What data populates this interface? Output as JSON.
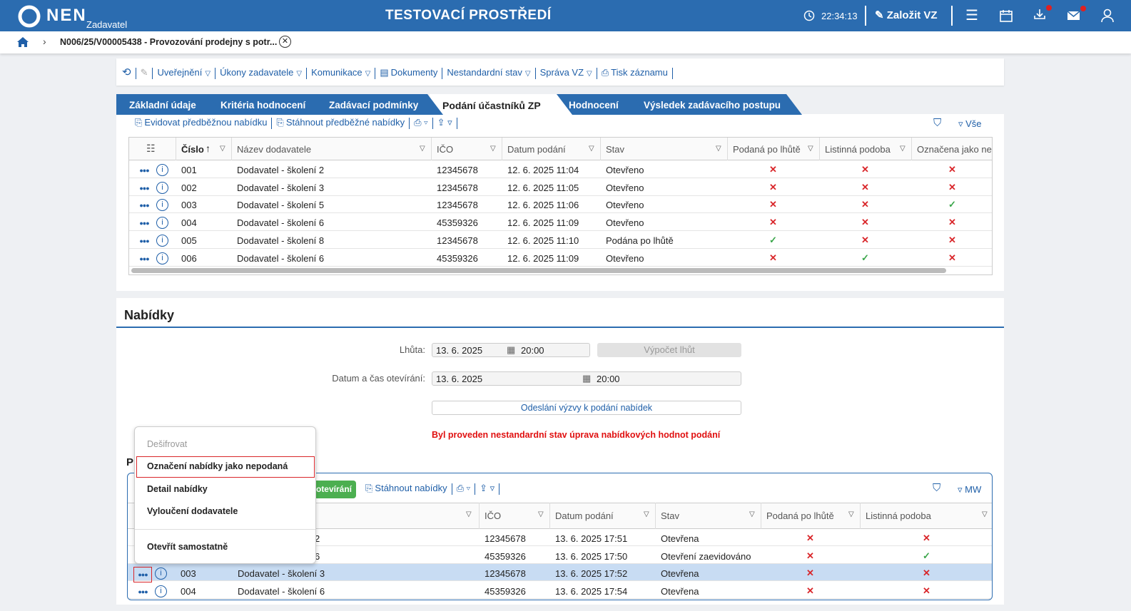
{
  "header": {
    "logo": "NEN",
    "role": "Zadavatel",
    "environment": "TESTOVACÍ PROSTŘEDÍ",
    "time": "22:34:13",
    "create": "Založit VZ"
  },
  "breadcrumb": "N006/25/V00005438 - Provozování prodejny s potr...",
  "toolbar": [
    {
      "label": "Uveřejnění",
      "dropdown": true
    },
    {
      "label": "Úkony zadavatele",
      "dropdown": true
    },
    {
      "label": "Komunikace",
      "dropdown": true
    },
    {
      "label": "Dokumenty",
      "dropdown": false
    },
    {
      "label": "Nestandardní stav",
      "dropdown": true
    },
    {
      "label": "Správa VZ",
      "dropdown": true
    },
    {
      "label": "Tisk záznamu",
      "dropdown": false
    }
  ],
  "tabs": {
    "items": [
      "Základní údaje",
      "Kritéria hodnocení",
      "Zadávací podmínky",
      "Podání účastníků ZP",
      "Hodnocení",
      "Výsledek zadávacího postupu"
    ],
    "active": 3
  },
  "table1": {
    "actions": [
      "Evidovat předběžnou nabídku",
      "Stáhnout předběžné nabídky"
    ],
    "filter": "Vše",
    "columns": [
      "Číslo",
      "Název dodavatele",
      "IČO",
      "Datum podání",
      "Stav",
      "Podaná po lhůtě",
      "Listinná podoba",
      "Označena jako nep"
    ],
    "rows": [
      {
        "cells": [
          "001",
          "Dodavatel - školení 2",
          "12345678",
          "12. 6. 2025 11:04",
          "Otevřeno"
        ],
        "flags": [
          false,
          false,
          false
        ]
      },
      {
        "cells": [
          "002",
          "Dodavatel - školení 3",
          "12345678",
          "12. 6. 2025 11:05",
          "Otevřeno"
        ],
        "flags": [
          false,
          false,
          false
        ]
      },
      {
        "cells": [
          "003",
          "Dodavatel - školení 5",
          "12345678",
          "12. 6. 2025 11:06",
          "Otevřeno"
        ],
        "flags": [
          false,
          false,
          true
        ]
      },
      {
        "cells": [
          "004",
          "Dodavatel - školení 6",
          "45359326",
          "12. 6. 2025 11:09",
          "Otevřeno"
        ],
        "flags": [
          false,
          false,
          false
        ]
      },
      {
        "cells": [
          "005",
          "Dodavatel - školení 8",
          "12345678",
          "12. 6. 2025 11:10",
          "Podána po lhůtě"
        ],
        "flags": [
          true,
          false,
          false
        ]
      },
      {
        "cells": [
          "006",
          "Dodavatel - školení 6",
          "45359326",
          "12. 6. 2025 11:09",
          "Otevřeno"
        ],
        "flags": [
          false,
          true,
          false
        ]
      }
    ]
  },
  "offers": {
    "title": "Nabídky",
    "deadline": {
      "label": "Lhůta:",
      "date": "13. 6. 2025",
      "time": "20:00",
      "button": "Výpočet lhůt"
    },
    "opening": {
      "label": "Datum a čas otevírání:",
      "date": "13. 6. 2025",
      "time": "20:00"
    },
    "send_button": "Odeslání výzvy k podání nabídek",
    "warning": "Byl proveden nestandardní stav úprava nabídkových hodnot podání",
    "subtitle": "P"
  },
  "table2": {
    "green_button": "otevírání",
    "actions": [
      "Stáhnout nabídky"
    ],
    "filter": "MW",
    "columns": [
      "IČO",
      "Datum podání",
      "Stav",
      "Podaná po lhůtě",
      "Listinná podoba"
    ],
    "rows": [
      {
        "name": "2",
        "cells": [
          "12345678",
          "13. 6. 2025 17:51",
          "Otevřena"
        ],
        "flags": [
          false,
          false
        ]
      },
      {
        "name": "6",
        "cells": [
          "45359326",
          "13. 6. 2025 17:50",
          "Otevření zaevidováno"
        ],
        "flags": [
          false,
          true
        ]
      },
      {
        "number": "003",
        "name": "Dodavatel - školení 3",
        "cells": [
          "12345678",
          "13. 6. 2025 17:52",
          "Otevřena"
        ],
        "flags": [
          false,
          false
        ],
        "selected": true
      },
      {
        "number": "004",
        "name": "Dodavatel - školení 6",
        "cells": [
          "45359326",
          "13. 6. 2025 17:54",
          "Otevřena"
        ],
        "flags": [
          false,
          false
        ]
      }
    ]
  },
  "context_menu": {
    "items": [
      "Dešifrovat",
      "Označení nabídky jako nepodaná",
      "Detail nabídky",
      "Vyloučení dodavatele",
      "Otevřít samostatně"
    ],
    "disabled": 0,
    "highlighted": 1
  }
}
